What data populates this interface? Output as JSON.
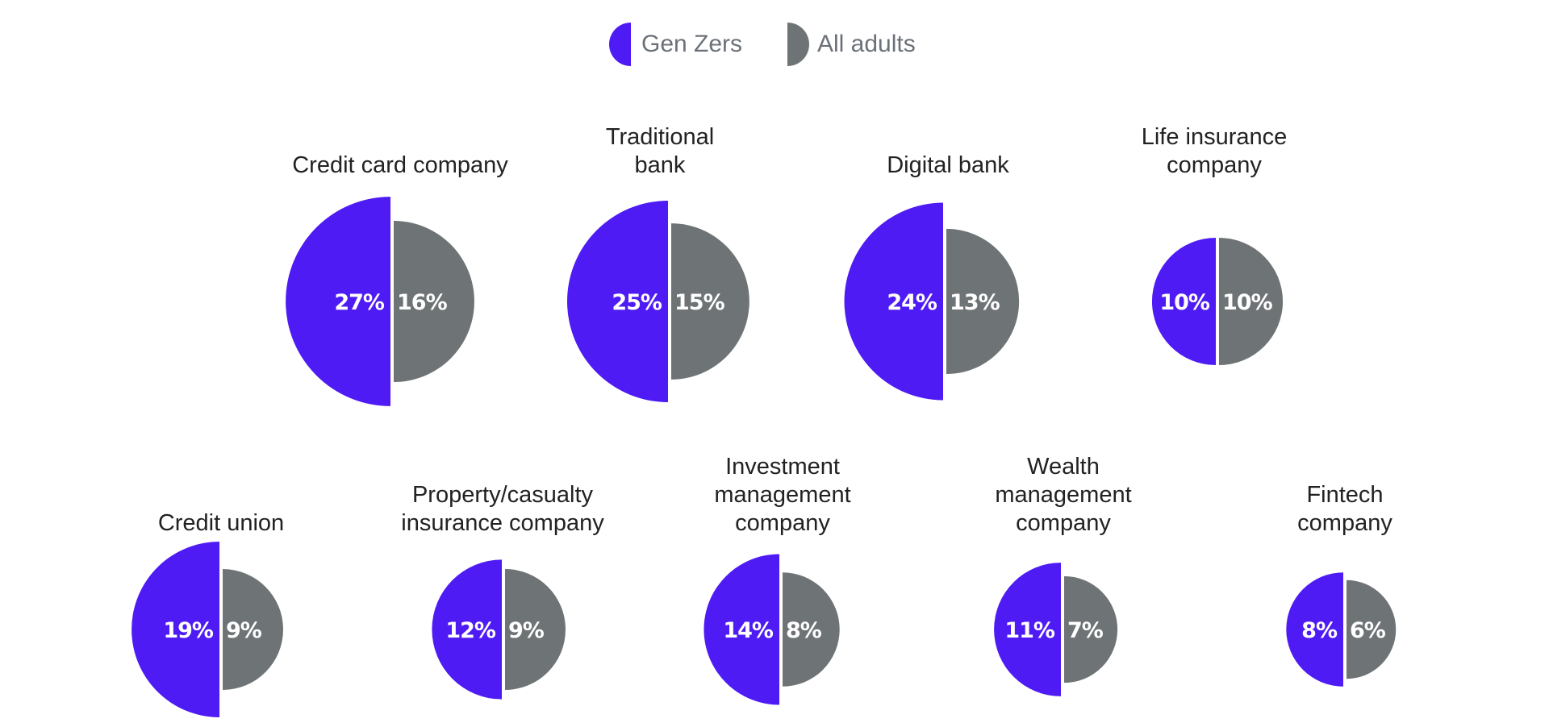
{
  "legend": {
    "gen_z_label": "Gen Zers",
    "adults_label": "All adults"
  },
  "colors": {
    "gen_z": "#4f1bf4",
    "adults": "#6e7375",
    "label_on_shape": "#ffffff"
  },
  "chart_data": {
    "type": "pie",
    "title": "",
    "legend_position": "top-center",
    "series": [
      {
        "name": "Gen Zers",
        "key": "gen_z"
      },
      {
        "name": "All adults",
        "key": "adults"
      }
    ],
    "categories": [
      {
        "label_lines": [
          "Credit card company"
        ],
        "gen_z": 27,
        "adults": 16,
        "gen_z_text": "27%",
        "adults_text": "16%"
      },
      {
        "label_lines": [
          "Traditional",
          "bank"
        ],
        "gen_z": 25,
        "adults": 15,
        "gen_z_text": "25%",
        "adults_text": "15%"
      },
      {
        "label_lines": [
          "Digital bank"
        ],
        "gen_z": 24,
        "adults": 13,
        "gen_z_text": "24%",
        "adults_text": "13%"
      },
      {
        "label_lines": [
          "Life insurance",
          "company"
        ],
        "gen_z": 10,
        "adults": 10,
        "gen_z_text": "10%",
        "adults_text": "10%"
      },
      {
        "label_lines": [
          "Credit union"
        ],
        "gen_z": 19,
        "adults": 9,
        "gen_z_text": "19%",
        "adults_text": "9%"
      },
      {
        "label_lines": [
          "Property/casualty",
          "insurance company"
        ],
        "gen_z": 12,
        "adults": 9,
        "gen_z_text": "12%",
        "adults_text": "9%"
      },
      {
        "label_lines": [
          "Investment",
          "management",
          "company"
        ],
        "gen_z": 14,
        "adults": 8,
        "gen_z_text": "14%",
        "adults_text": "8%"
      },
      {
        "label_lines": [
          "Wealth",
          "management",
          "company"
        ],
        "gen_z": 11,
        "adults": 7,
        "gen_z_text": "11%",
        "adults_text": "7%"
      },
      {
        "label_lines": [
          "Fintech",
          "company"
        ],
        "gen_z": 8,
        "adults": 6,
        "gen_z_text": "8%",
        "adults_text": "6%"
      }
    ]
  }
}
